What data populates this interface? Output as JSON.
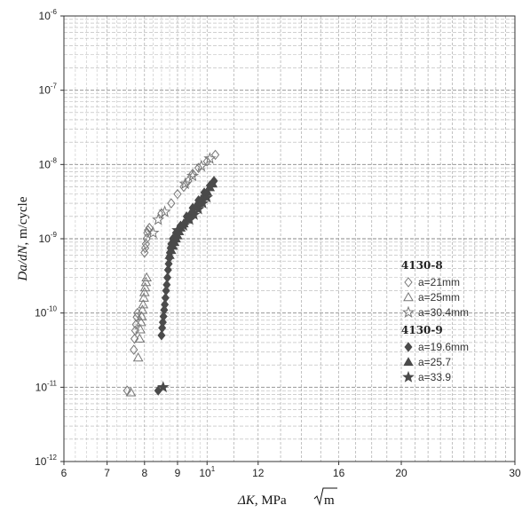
{
  "chart_data": {
    "type": "scatter",
    "xscale": "log",
    "yscale": "log",
    "xlim": [
      6,
      30
    ],
    "ylim": [
      1e-12,
      1e-06
    ],
    "grid": true,
    "legend_position": "right",
    "xlabel": {
      "main": "ΔK",
      "unit": ", MPa",
      "radicand": "m"
    },
    "ylabel": {
      "main": "Da/dN",
      "unit": ", m/cycle"
    },
    "xticks": [
      {
        "value": 6,
        "label": "6"
      },
      {
        "value": 7,
        "label": "7"
      },
      {
        "value": 8,
        "label": "8"
      },
      {
        "value": 9,
        "label": "9"
      },
      {
        "value": 10,
        "label": "10",
        "base": "10",
        "exp": "1"
      },
      {
        "value": 12,
        "label": "12"
      },
      {
        "value": 16,
        "label": "16"
      },
      {
        "value": 20,
        "label": "20"
      },
      {
        "value": 30,
        "label": "30"
      }
    ],
    "yticks": [
      {
        "value": 1e-06,
        "base": "10",
        "exp": "-6"
      },
      {
        "value": 1e-07,
        "base": "10",
        "exp": "-7"
      },
      {
        "value": 1e-08,
        "base": "10",
        "exp": "-8"
      },
      {
        "value": 1e-09,
        "base": "10",
        "exp": "-9"
      },
      {
        "value": 1e-10,
        "base": "10",
        "exp": "-10"
      },
      {
        "value": 1e-11,
        "base": "10",
        "exp": "-11"
      },
      {
        "value": 1e-12,
        "base": "10",
        "exp": "-12"
      }
    ],
    "legend_groups": [
      {
        "title": "4130-8",
        "entries": [
          "a=21mm",
          "a=25mm",
          "a=30.4mm"
        ]
      },
      {
        "title": "4130-9",
        "entries": [
          "a=19.6mm",
          "a=25.7",
          "a=33.9"
        ]
      }
    ],
    "series": [
      {
        "name": "a=21mm",
        "group": "4130-8",
        "marker": "diamond-open",
        "color": "#777777",
        "points": [
          [
            7.52,
            9e-12
          ],
          [
            7.7,
            3.2e-11
          ],
          [
            7.72,
            4.5e-11
          ],
          [
            7.74,
            5.8e-11
          ],
          [
            7.76,
            7e-11
          ],
          [
            7.78,
            8.8e-11
          ],
          [
            7.8,
            1e-10
          ],
          [
            8.0,
            6.5e-10
          ],
          [
            8.02,
            7.5e-10
          ],
          [
            8.04,
            8.5e-10
          ],
          [
            8.06,
            1e-09
          ],
          [
            8.08,
            1.2e-09
          ],
          [
            8.1,
            1.3e-09
          ],
          [
            8.14,
            1.4e-09
          ],
          [
            8.5,
            2.2e-09
          ],
          [
            8.8,
            3e-09
          ],
          [
            9.0,
            4e-09
          ],
          [
            9.2,
            5e-09
          ],
          [
            9.35,
            6e-09
          ],
          [
            9.5,
            7.5e-09
          ],
          [
            9.7,
            9e-09
          ],
          [
            10.0,
            1.1e-08
          ],
          [
            10.3,
            1.35e-08
          ]
        ]
      },
      {
        "name": "a=25mm",
        "group": "4130-8",
        "marker": "triangle-open",
        "color": "#777777",
        "points": [
          [
            7.62,
            8.5e-12
          ],
          [
            7.82,
            2.5e-11
          ],
          [
            7.86,
            4.5e-11
          ],
          [
            7.88,
            6e-11
          ],
          [
            7.9,
            7.5e-11
          ],
          [
            7.92,
            9e-11
          ],
          [
            7.94,
            1.1e-10
          ],
          [
            7.96,
            1.3e-10
          ],
          [
            7.98,
            1.6e-10
          ],
          [
            8.0,
            1.9e-10
          ],
          [
            8.02,
            2.2e-10
          ],
          [
            8.04,
            2.6e-10
          ],
          [
            8.06,
            3e-10
          ]
        ]
      },
      {
        "name": "a=30.4mm",
        "group": "4130-8",
        "marker": "star-open",
        "color": "#777777",
        "points": [
          [
            8.25,
            1.2e-09
          ],
          [
            8.4,
            1.8e-09
          ],
          [
            8.6,
            2.3e-09
          ],
          [
            9.25,
            5.5e-09
          ],
          [
            9.5,
            7e-09
          ],
          [
            9.8,
            9.5e-09
          ],
          [
            10.1,
            1.2e-08
          ]
        ]
      },
      {
        "name": "a=19.6mm",
        "group": "4130-9",
        "marker": "diamond-filled",
        "color": "#4a4a4a",
        "points": [
          [
            8.4,
            9e-12
          ],
          [
            8.5,
            5e-11
          ],
          [
            8.52,
            6.3e-11
          ],
          [
            8.54,
            7.5e-11
          ],
          [
            8.56,
            9e-11
          ],
          [
            8.58,
            1.1e-10
          ],
          [
            8.6,
            1.3e-10
          ],
          [
            8.62,
            1.6e-10
          ],
          [
            8.64,
            2e-10
          ],
          [
            8.66,
            2.4e-10
          ],
          [
            8.68,
            3e-10
          ],
          [
            8.7,
            3.8e-10
          ],
          [
            8.72,
            4.6e-10
          ],
          [
            8.74,
            5.5e-10
          ],
          [
            8.76,
            6.5e-10
          ],
          [
            8.78,
            7.5e-10
          ],
          [
            8.8,
            8.5e-10
          ],
          [
            8.85,
            1e-09
          ],
          [
            8.95,
            1.2e-09
          ],
          [
            9.1,
            1.5e-09
          ],
          [
            9.3,
            2e-09
          ],
          [
            9.5,
            2.6e-09
          ],
          [
            9.7,
            3.3e-09
          ],
          [
            9.9,
            4.2e-09
          ],
          [
            10.1,
            5.2e-09
          ],
          [
            10.25,
            6e-09
          ]
        ]
      },
      {
        "name": "a=25.7",
        "group": "4130-9",
        "marker": "triangle-filled",
        "color": "#4a4a4a",
        "points": [
          [
            8.75,
            6e-10
          ],
          [
            8.8,
            7e-10
          ],
          [
            8.85,
            8e-10
          ],
          [
            8.9,
            9e-10
          ],
          [
            8.95,
            1e-09
          ],
          [
            9.0,
            1.1e-09
          ],
          [
            9.05,
            1.25e-09
          ],
          [
            9.1,
            1.4e-09
          ],
          [
            9.2,
            1.6e-09
          ],
          [
            9.3,
            1.8e-09
          ],
          [
            9.4,
            2.1e-09
          ],
          [
            9.5,
            2.4e-09
          ],
          [
            9.6,
            2.7e-09
          ],
          [
            9.7,
            3e-09
          ],
          [
            9.8,
            3.4e-09
          ],
          [
            9.9,
            3.8e-09
          ],
          [
            10.0,
            4.3e-09
          ],
          [
            10.1,
            4.9e-09
          ],
          [
            10.2,
            5.5e-09
          ]
        ]
      },
      {
        "name": "a=33.9",
        "group": "4130-9",
        "marker": "star-filled",
        "color": "#4a4a4a",
        "points": [
          [
            8.55,
            1e-11
          ],
          [
            9.0,
            1.3e-09
          ],
          [
            9.2,
            1.5e-09
          ],
          [
            9.4,
            1.8e-09
          ],
          [
            9.55,
            2.1e-09
          ],
          [
            9.7,
            2.5e-09
          ],
          [
            9.85,
            3e-09
          ],
          [
            10.0,
            3.6e-09
          ]
        ]
      }
    ]
  }
}
